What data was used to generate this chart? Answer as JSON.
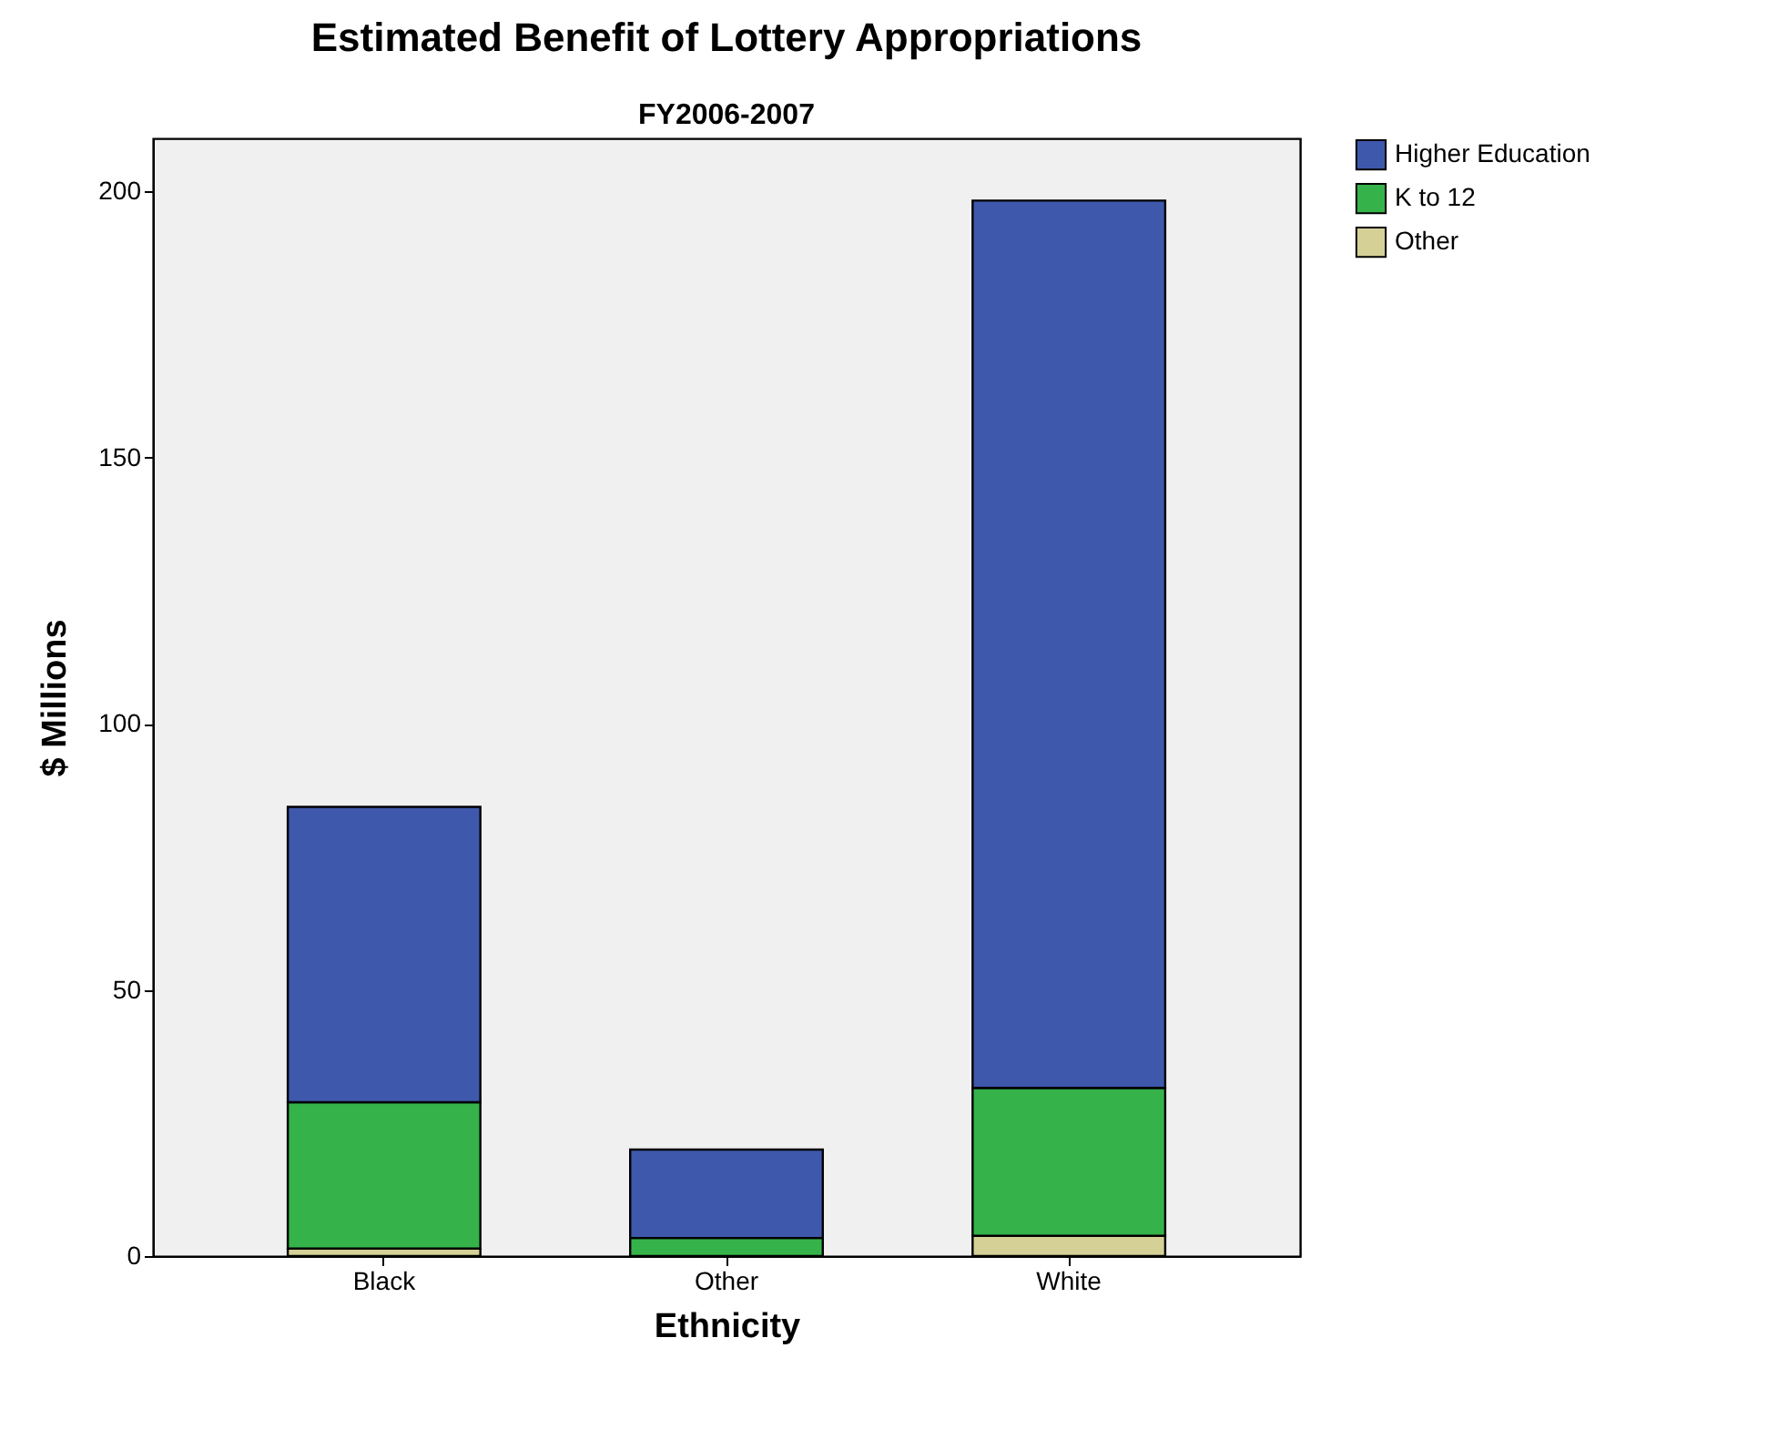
{
  "chart_data": {
    "type": "bar",
    "title": "Estimated Benefit of Lottery Appropriations",
    "subtitle": "FY2006-2007",
    "xlabel": "Ethnicity",
    "ylabel": "$ Millions",
    "categories": [
      "Black",
      "Other",
      "White"
    ],
    "stacked": true,
    "series": [
      {
        "name": "Other",
        "color": "#d5d096",
        "values": [
          1.4,
          null,
          3.8
        ]
      },
      {
        "name": "K to 12",
        "color": "#35b34a",
        "values": [
          27.5,
          3.4,
          27.8
        ]
      },
      {
        "name": "Higher Education",
        "color": "#3e58ac",
        "values": [
          55.5,
          16.6,
          166.7
        ]
      }
    ],
    "ylim": [
      0,
      210
    ],
    "yticks": [
      0,
      50,
      100,
      150,
      200
    ],
    "grid": false,
    "legend": "right"
  }
}
